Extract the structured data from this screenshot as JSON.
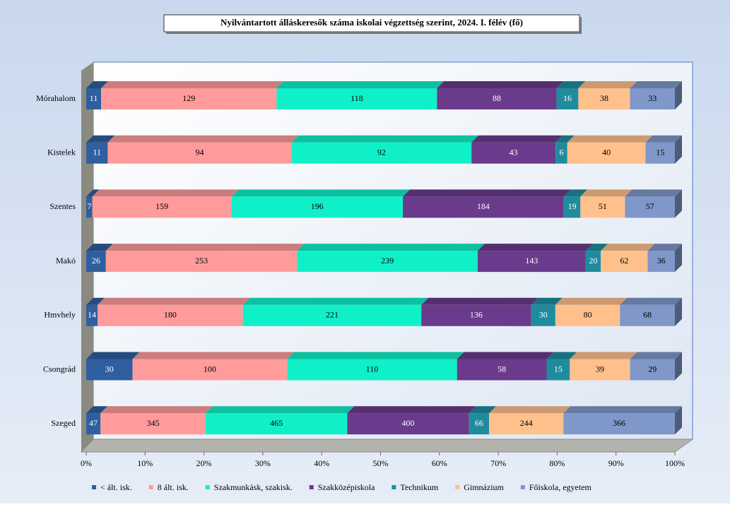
{
  "chart_data": {
    "type": "bar",
    "orientation": "horizontal",
    "stacking": "percent",
    "title": "Nyilvántartott  álláskeresők száma iskolai végzettség szerint, 2024. I. félév (fő)",
    "categories": [
      "Mórahalom",
      "Kistelek",
      "Szentes",
      "Makó",
      "Hmvhely",
      "Csongrád",
      "Szeged"
    ],
    "series": [
      {
        "name": "< ált. isk.",
        "color": "#2f5f9f",
        "label_color": "#ffffff",
        "values": [
          11,
          11,
          7,
          26,
          14,
          30,
          47
        ]
      },
      {
        "name": "8 ált. isk.",
        "color": "#ff9b9b",
        "label_color": "#000000",
        "values": [
          129,
          94,
          159,
          253,
          180,
          100,
          345
        ]
      },
      {
        "name": "Szakmunkásk, szakisk.",
        "color": "#10f0c8",
        "label_color": "#000000",
        "values": [
          118,
          92,
          196,
          239,
          221,
          110,
          465
        ]
      },
      {
        "name": "Szakközépiskola",
        "color": "#6a3b8c",
        "label_color": "#ffffff",
        "values": [
          88,
          43,
          184,
          143,
          136,
          58,
          400
        ]
      },
      {
        "name": "Technikum",
        "color": "#1f8c9e",
        "label_color": "#ffffff",
        "values": [
          16,
          6,
          19,
          20,
          30,
          15,
          66
        ]
      },
      {
        "name": "Gimnázium",
        "color": "#ffc08c",
        "label_color": "#000000",
        "values": [
          38,
          40,
          51,
          62,
          80,
          39,
          244
        ]
      },
      {
        "name": "Főiskola, egyetem",
        "color": "#7f97c9",
        "label_color": "#000000",
        "values": [
          33,
          15,
          57,
          36,
          68,
          29,
          366
        ]
      }
    ],
    "xlim": [
      0,
      100
    ],
    "xticks": [
      {
        "value": 0,
        "label": "0%"
      },
      {
        "value": 10,
        "label": "10%"
      },
      {
        "value": 20,
        "label": "20%"
      },
      {
        "value": 30,
        "label": "30%"
      },
      {
        "value": 40,
        "label": "40%"
      },
      {
        "value": 50,
        "label": "50%"
      },
      {
        "value": 60,
        "label": "60%"
      },
      {
        "value": 70,
        "label": "70%"
      },
      {
        "value": 80,
        "label": "80%"
      },
      {
        "value": 90,
        "label": "90%"
      },
      {
        "value": 100,
        "label": "100%"
      }
    ],
    "legend": "bottom",
    "grid": false
  }
}
